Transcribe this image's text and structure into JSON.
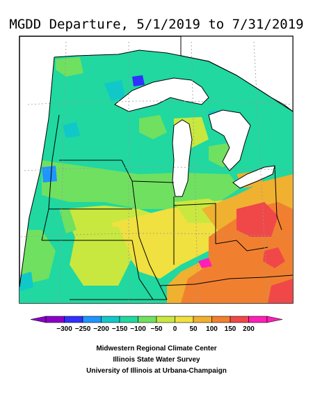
{
  "title": "MGDD Departure, 5/1/2019 to 7/31/2019",
  "legend": {
    "labels": [
      "−300",
      "−250",
      "−200",
      "−150",
      "−100",
      "−50",
      "0",
      "50",
      "100",
      "150",
      "200"
    ],
    "colors": [
      "#8a00c8",
      "#3030ff",
      "#1f95ff",
      "#10c8c8",
      "#20d8a0",
      "#70e060",
      "#c8e840",
      "#f0e040",
      "#f0b030",
      "#f08030",
      "#f04848",
      "#ff1fb8"
    ]
  },
  "credits": [
    "Midwestern Regional Climate Center",
    "Illinois State Water Survey",
    "University of Illinois at Urbana-Champaign"
  ]
}
